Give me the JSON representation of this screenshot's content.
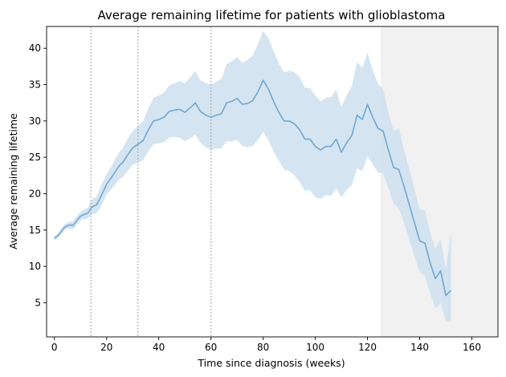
{
  "chart_data": {
    "type": "line",
    "title": "Average remaining lifetime for patients with glioblastoma",
    "xlabel": "Time since diagnosis (weeks)",
    "ylabel": "Average remaining lifetime",
    "xlim": [
      -3,
      170
    ],
    "ylim": [
      0.3,
      43
    ],
    "xticks": [
      0,
      20,
      40,
      60,
      80,
      100,
      120,
      140,
      160
    ],
    "yticks": [
      5,
      10,
      15,
      20,
      25,
      30,
      35,
      40
    ],
    "grid": false,
    "legend": null,
    "colors": {
      "line": "#6fa8d3",
      "band": "#cfe1ef",
      "shaded_region": "#ebebeb",
      "vline": "#aaaaaa"
    },
    "vertical_lines_x": [
      14,
      32,
      60
    ],
    "shaded_region_x": [
      125,
      170
    ],
    "series": [
      {
        "x": [
          0,
          1,
          2,
          3,
          4,
          5,
          6,
          7,
          8,
          9,
          10,
          11,
          12,
          13,
          14,
          15,
          16,
          17,
          18,
          19,
          20,
          22,
          24,
          25,
          26,
          28,
          30,
          32,
          34,
          36,
          38,
          40,
          42,
          44,
          46,
          48,
          50,
          52,
          54,
          56,
          58,
          60,
          62,
          64,
          66,
          68,
          70,
          72,
          74,
          76,
          78,
          80,
          82,
          84,
          86,
          88,
          90,
          92,
          94,
          96,
          98,
          100,
          102,
          104,
          106,
          108,
          110,
          112,
          114,
          116,
          118,
          120,
          122,
          124,
          126,
          128,
          130,
          132,
          134,
          136,
          138,
          140,
          142,
          144,
          146,
          148,
          150,
          152
        ],
        "y": [
          13.9,
          14.1,
          14.5,
          15.0,
          15.4,
          15.6,
          15.7,
          15.6,
          16.0,
          16.5,
          16.9,
          17.1,
          17.2,
          17.4,
          18.0,
          18.3,
          18.4,
          19.0,
          19.8,
          20.5,
          21.3,
          22.3,
          23.4,
          23.9,
          24.2,
          25.3,
          26.3,
          26.8,
          27.3,
          28.8,
          30.0,
          30.2,
          30.5,
          31.3,
          31.5,
          31.6,
          31.2,
          31.8,
          32.5,
          31.3,
          30.8,
          30.5,
          30.8,
          31.0,
          32.5,
          32.7,
          33.1,
          32.3,
          32.4,
          32.8,
          34.0,
          35.6,
          34.4,
          32.7,
          31.2,
          30.0,
          30.0,
          29.6,
          28.8,
          27.5,
          27.5,
          26.5,
          26.0,
          26.5,
          26.5,
          27.5,
          25.7,
          27.0,
          28.0,
          30.8,
          30.2,
          32.3,
          30.5,
          29.0,
          28.6,
          26.0,
          23.6,
          23.3,
          21.0,
          18.5,
          16.0,
          13.5,
          13.2,
          10.5,
          8.3,
          9.4,
          6.0,
          6.7
        ],
        "y_lower": [
          13.6,
          13.8,
          14.2,
          14.6,
          15.0,
          15.2,
          15.2,
          15.1,
          15.4,
          15.9,
          16.3,
          16.5,
          16.5,
          16.7,
          17.0,
          17.2,
          17.3,
          17.7,
          18.4,
          19.1,
          19.9,
          20.7,
          21.6,
          22.0,
          22.2,
          23.1,
          24.0,
          24.3,
          24.6,
          25.8,
          26.8,
          26.9,
          27.1,
          27.7,
          27.8,
          27.7,
          27.2,
          27.6,
          28.1,
          27.0,
          26.4,
          26.0,
          26.2,
          26.2,
          27.2,
          27.2,
          27.4,
          26.6,
          26.4,
          26.6,
          27.4,
          28.5,
          27.4,
          25.8,
          24.5,
          23.3,
          23.1,
          22.5,
          21.6,
          20.4,
          20.5,
          19.5,
          19.3,
          19.8,
          19.7,
          20.7,
          19.5,
          20.5,
          21.2,
          23.5,
          23.1,
          25.2,
          24.0,
          22.9,
          22.8,
          20.8,
          18.6,
          18.0,
          16.0,
          13.6,
          11.4,
          9.2,
          8.7,
          6.3,
          4.2,
          5.0,
          2.5,
          2.4
        ],
        "y_upper": [
          14.2,
          14.4,
          14.8,
          15.4,
          15.8,
          16.0,
          16.2,
          16.1,
          16.6,
          17.1,
          17.5,
          17.7,
          17.9,
          18.1,
          19.0,
          19.4,
          19.5,
          20.3,
          21.2,
          21.9,
          22.7,
          23.9,
          25.2,
          25.8,
          26.2,
          27.5,
          28.6,
          29.3,
          30.0,
          31.8,
          33.2,
          33.5,
          33.9,
          34.9,
          35.2,
          35.5,
          35.2,
          36.0,
          36.9,
          35.6,
          35.2,
          35.0,
          35.4,
          35.8,
          37.8,
          38.2,
          38.8,
          38.0,
          38.4,
          39.0,
          40.6,
          42.4,
          41.4,
          39.6,
          37.9,
          36.7,
          36.9,
          36.7,
          36.0,
          34.6,
          34.5,
          33.5,
          32.7,
          33.2,
          33.3,
          34.3,
          31.9,
          33.5,
          34.8,
          38.1,
          37.3,
          39.4,
          37.0,
          35.1,
          34.4,
          31.2,
          28.6,
          29.0,
          26.0,
          23.4,
          20.6,
          17.8,
          17.7,
          14.7,
          12.4,
          13.8,
          9.5,
          14.8
        ]
      }
    ]
  }
}
